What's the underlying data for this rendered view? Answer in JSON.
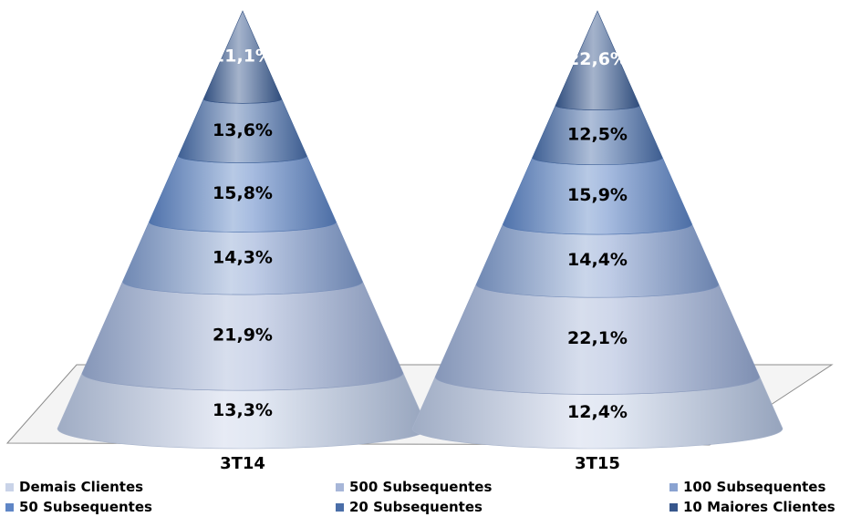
{
  "chart_data": {
    "type": "cone",
    "categories": [
      "3T14",
      "3T15"
    ],
    "series": [
      {
        "name": "Demais Clientes",
        "color": "#c9d3e8",
        "values": [
          13.3,
          12.4
        ],
        "labels": [
          "13,3%",
          "12,4%"
        ]
      },
      {
        "name": "500 Subsequentes",
        "color": "#a7b6d8",
        "values": [
          21.9,
          22.1
        ],
        "labels": [
          "21,9%",
          "22,1%"
        ]
      },
      {
        "name": "100 Subsequentes",
        "color": "#8aa3d1",
        "values": [
          14.3,
          14.4
        ],
        "labels": [
          "14,3%",
          "14,4%"
        ]
      },
      {
        "name": "50 Subsequentes",
        "color": "#5f86c6",
        "values": [
          15.8,
          15.9
        ],
        "labels": [
          "15,8%",
          "15,9%"
        ]
      },
      {
        "name": "20 Subsequentes",
        "color": "#4a6ea8",
        "values": [
          13.6,
          12.5
        ],
        "labels": [
          "13,6%",
          "12,5%"
        ]
      },
      {
        "name": "10 Maiores Clientes",
        "color": "#37578c",
        "values": [
          21.1,
          22.6
        ],
        "labels": [
          "21,1%",
          "22,6%"
        ]
      }
    ],
    "stacked": true,
    "legend_position": "bottom",
    "title": "",
    "xlabel": "",
    "ylabel": ""
  }
}
